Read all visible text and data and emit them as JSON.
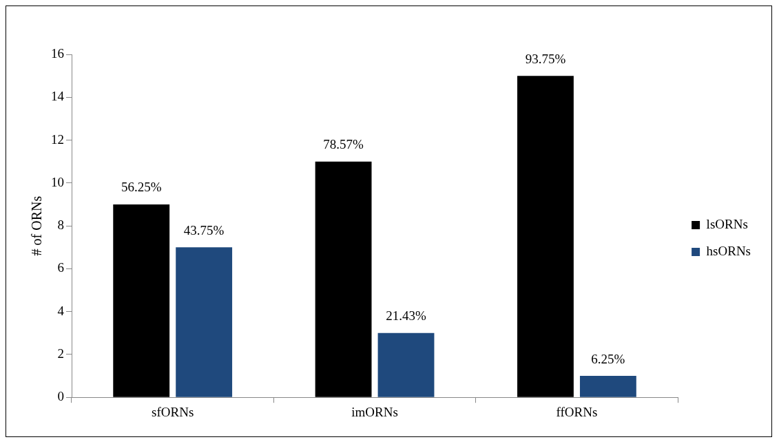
{
  "chart_data": {
    "type": "bar",
    "ylabel": "# of ORNs",
    "categories": [
      "sfORNs",
      "imORNs",
      "ffORNs"
    ],
    "series": [
      {
        "name": "lsORNs",
        "color": "#000000",
        "values": [
          9,
          11,
          15
        ]
      },
      {
        "name": "hsORNs",
        "color": "#1f497d",
        "values": [
          7,
          3,
          1
        ]
      }
    ],
    "annotations": [
      {
        "text": "56.25%",
        "x": "sfORNs",
        "y": 9
      },
      {
        "text": "78.57%",
        "x": "imORNs",
        "y": 11
      },
      {
        "text": "93.75%",
        "x": "ffORNs",
        "y": 15
      },
      {
        "text": "43.75%",
        "x": "sfORNs",
        "y": 7
      },
      {
        "text": "21.43%",
        "x": "imORNs",
        "y": 3
      },
      {
        "text": "6.25%",
        "x": "ffORNs",
        "y": 1
      }
    ],
    "ylim": [
      0,
      16
    ],
    "yticks": [
      0,
      2,
      4,
      6,
      8,
      10,
      12,
      14,
      16
    ],
    "grid": false,
    "legend": "right"
  }
}
